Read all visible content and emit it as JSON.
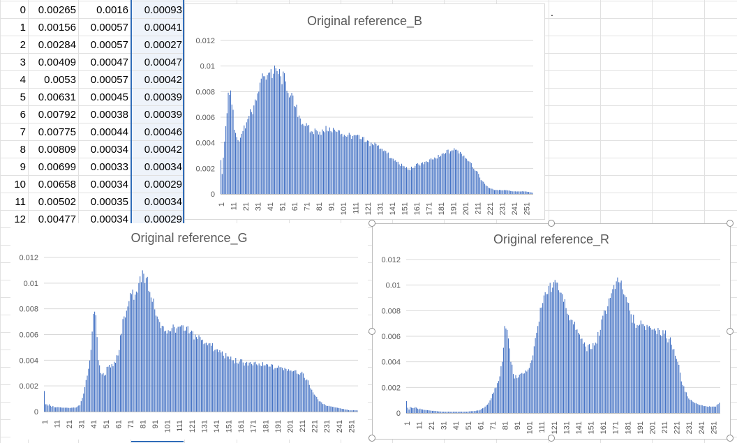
{
  "sheet": {
    "rows": [
      {
        "n": "0",
        "a": "0.00265",
        "b": "0.0016",
        "c": "0.00093"
      },
      {
        "n": "1",
        "a": "0.00156",
        "b": "0.00057",
        "c": "0.00041"
      },
      {
        "n": "2",
        "a": "0.00284",
        "b": "0.00057",
        "c": "0.00027"
      },
      {
        "n": "3",
        "a": "0.00409",
        "b": "0.00047",
        "c": "0.00047"
      },
      {
        "n": "4",
        "a": "0.0053",
        "b": "0.00057",
        "c": "0.00042"
      },
      {
        "n": "5",
        "a": "0.00631",
        "b": "0.00045",
        "c": "0.00039"
      },
      {
        "n": "6",
        "a": "0.00792",
        "b": "0.00038",
        "c": "0.00039"
      },
      {
        "n": "7",
        "a": "0.00775",
        "b": "0.00044",
        "c": "0.00046"
      },
      {
        "n": "8",
        "a": "0.00809",
        "b": "0.00034",
        "c": "0.00042"
      },
      {
        "n": "9",
        "a": "0.00699",
        "b": "0.00033",
        "c": "0.00034"
      },
      {
        "n": "10",
        "a": "0.00658",
        "b": "0.00034",
        "c": "0.00029"
      },
      {
        "n": "11",
        "a": "0.00502",
        "b": "0.00035",
        "c": "0.00034"
      },
      {
        "n": "12",
        "a": "0.00477",
        "b": "0.00034",
        "c": "0.00029"
      }
    ],
    "trailing_mark": "."
  },
  "colors": {
    "bar": "#4472c4",
    "grid": "#d9d9d9",
    "axis_text": "#595959",
    "title": "#595959",
    "selection": "#2f6cb8",
    "selected_fill": "#eef3fa",
    "cell_grid": "#e1e1e1"
  },
  "chart_data": [
    {
      "type": "bar",
      "title": "Original reference_B",
      "xlabel": "",
      "ylabel": "",
      "ylim": [
        0,
        0.012
      ],
      "yticks": [
        "0",
        "0.002",
        "0.004",
        "0.006",
        "0.008",
        "0.01",
        "0.012"
      ],
      "xticks": [
        "1",
        "11",
        "21",
        "31",
        "41",
        "51",
        "61",
        "71",
        "81",
        "91",
        "101",
        "111",
        "121",
        "131",
        "141",
        "151",
        "161",
        "171",
        "181",
        "191",
        "201",
        "211",
        "221",
        "231",
        "241",
        "251"
      ],
      "x_range": [
        1,
        256
      ],
      "grid": true,
      "profile": [
        [
          1,
          0.00265
        ],
        [
          2,
          0.00156
        ],
        [
          3,
          0.00284
        ],
        [
          4,
          0.00409
        ],
        [
          5,
          0.0053
        ],
        [
          6,
          0.00631
        ],
        [
          7,
          0.00792
        ],
        [
          8,
          0.00775
        ],
        [
          9,
          0.00809
        ],
        [
          10,
          0.00699
        ],
        [
          11,
          0.00658
        ],
        [
          12,
          0.00502
        ],
        [
          13,
          0.00477
        ],
        [
          15,
          0.0042
        ],
        [
          18,
          0.0047
        ],
        [
          22,
          0.0056
        ],
        [
          26,
          0.0064
        ],
        [
          30,
          0.0073
        ],
        [
          33,
          0.0087
        ],
        [
          37,
          0.0092
        ],
        [
          41,
          0.0095
        ],
        [
          44,
          0.0094
        ],
        [
          47,
          0.0096
        ],
        [
          50,
          0.0092
        ],
        [
          54,
          0.0088
        ],
        [
          58,
          0.0077
        ],
        [
          62,
          0.0068
        ],
        [
          66,
          0.0059
        ],
        [
          70,
          0.0053
        ],
        [
          75,
          0.0049
        ],
        [
          80,
          0.0049
        ],
        [
          85,
          0.0049
        ],
        [
          90,
          0.0052
        ],
        [
          95,
          0.0049
        ],
        [
          100,
          0.0047
        ],
        [
          105,
          0.0046
        ],
        [
          110,
          0.0046
        ],
        [
          115,
          0.0043
        ],
        [
          120,
          0.0041
        ],
        [
          125,
          0.0039
        ],
        [
          130,
          0.0038
        ],
        [
          135,
          0.0034
        ],
        [
          140,
          0.0028
        ],
        [
          145,
          0.0025
        ],
        [
          150,
          0.0022
        ],
        [
          155,
          0.0019
        ],
        [
          160,
          0.0022
        ],
        [
          165,
          0.0024
        ],
        [
          170,
          0.0025
        ],
        [
          175,
          0.0027
        ],
        [
          180,
          0.0029
        ],
        [
          185,
          0.0032
        ],
        [
          190,
          0.0034
        ],
        [
          195,
          0.0034
        ],
        [
          200,
          0.003
        ],
        [
          205,
          0.0025
        ],
        [
          210,
          0.0018
        ],
        [
          215,
          0.001
        ],
        [
          220,
          0.0005
        ],
        [
          225,
          0.0003
        ],
        [
          230,
          0.0003
        ],
        [
          235,
          0.0003
        ],
        [
          240,
          0.0002
        ],
        [
          245,
          0.0002
        ],
        [
          250,
          0.0002
        ],
        [
          256,
          0.0001
        ]
      ]
    },
    {
      "type": "bar",
      "title": "Original reference_G",
      "xlabel": "",
      "ylabel": "",
      "ylim": [
        0,
        0.012
      ],
      "yticks": [
        "0",
        "0.002",
        "0.004",
        "0.006",
        "0.008",
        "0.01",
        "0.012"
      ],
      "xticks": [
        "1",
        "11",
        "21",
        "31",
        "41",
        "51",
        "61",
        "71",
        "81",
        "91",
        "101",
        "111",
        "121",
        "131",
        "141",
        "151",
        "161",
        "171",
        "181",
        "191",
        "201",
        "211",
        "221",
        "231",
        "241",
        "251"
      ],
      "x_range": [
        1,
        256
      ],
      "grid": true,
      "profile": [
        [
          1,
          0.0016
        ],
        [
          2,
          0.00057
        ],
        [
          3,
          0.00057
        ],
        [
          4,
          0.00047
        ],
        [
          5,
          0.00057
        ],
        [
          6,
          0.00045
        ],
        [
          7,
          0.00038
        ],
        [
          8,
          0.00044
        ],
        [
          9,
          0.00034
        ],
        [
          10,
          0.00033
        ],
        [
          11,
          0.00034
        ],
        [
          12,
          0.00035
        ],
        [
          13,
          0.00034
        ],
        [
          20,
          0.0003
        ],
        [
          26,
          0.0003
        ],
        [
          30,
          0.0005
        ],
        [
          33,
          0.0014
        ],
        [
          36,
          0.0028
        ],
        [
          39,
          0.0048
        ],
        [
          41,
          0.0076
        ],
        [
          43,
          0.0075
        ],
        [
          45,
          0.004
        ],
        [
          47,
          0.003
        ],
        [
          50,
          0.0028
        ],
        [
          53,
          0.0035
        ],
        [
          56,
          0.0037
        ],
        [
          59,
          0.0038
        ],
        [
          62,
          0.0048
        ],
        [
          65,
          0.0072
        ],
        [
          70,
          0.0086
        ],
        [
          75,
          0.0091
        ],
        [
          78,
          0.01
        ],
        [
          81,
          0.011
        ],
        [
          84,
          0.0104
        ],
        [
          87,
          0.0093
        ],
        [
          90,
          0.0088
        ],
        [
          93,
          0.0074
        ],
        [
          96,
          0.0065
        ],
        [
          100,
          0.0063
        ],
        [
          105,
          0.0065
        ],
        [
          110,
          0.0066
        ],
        [
          115,
          0.0063
        ],
        [
          120,
          0.0062
        ],
        [
          125,
          0.0058
        ],
        [
          130,
          0.0056
        ],
        [
          135,
          0.0053
        ],
        [
          140,
          0.0048
        ],
        [
          145,
          0.0046
        ],
        [
          150,
          0.0043
        ],
        [
          155,
          0.004
        ],
        [
          160,
          0.0039
        ],
        [
          165,
          0.0038
        ],
        [
          170,
          0.0037
        ],
        [
          175,
          0.0036
        ],
        [
          180,
          0.0036
        ],
        [
          185,
          0.0035
        ],
        [
          190,
          0.0034
        ],
        [
          195,
          0.0034
        ],
        [
          200,
          0.0033
        ],
        [
          205,
          0.0032
        ],
        [
          210,
          0.003
        ],
        [
          215,
          0.0025
        ],
        [
          220,
          0.0015
        ],
        [
          225,
          0.0008
        ],
        [
          230,
          0.0005
        ],
        [
          235,
          0.0004
        ],
        [
          240,
          0.0003
        ],
        [
          245,
          0.0002
        ],
        [
          250,
          0.0001
        ],
        [
          256,
          0.0001
        ]
      ]
    },
    {
      "type": "bar",
      "title": "Original reference_R",
      "xlabel": "",
      "ylabel": "",
      "ylim": [
        0,
        0.012
      ],
      "yticks": [
        "0",
        "0.002",
        "0.004",
        "0.006",
        "0.008",
        "0.01",
        "0.012"
      ],
      "xticks": [
        "1",
        "11",
        "21",
        "31",
        "41",
        "51",
        "61",
        "71",
        "81",
        "91",
        "101",
        "111",
        "121",
        "131",
        "141",
        "151",
        "161",
        "171",
        "181",
        "191",
        "201",
        "211",
        "221",
        "231",
        "241",
        "251"
      ],
      "x_range": [
        1,
        256
      ],
      "grid": true,
      "profile": [
        [
          1,
          0.00093
        ],
        [
          2,
          0.00041
        ],
        [
          3,
          0.00027
        ],
        [
          4,
          0.00047
        ],
        [
          5,
          0.00042
        ],
        [
          6,
          0.00039
        ],
        [
          7,
          0.00039
        ],
        [
          8,
          0.00046
        ],
        [
          9,
          0.00042
        ],
        [
          10,
          0.00034
        ],
        [
          11,
          0.00029
        ],
        [
          12,
          0.00034
        ],
        [
          13,
          0.00029
        ],
        [
          20,
          0.0002
        ],
        [
          30,
          0.0001
        ],
        [
          40,
          0.0001
        ],
        [
          50,
          0.0001
        ],
        [
          60,
          0.0002
        ],
        [
          64,
          0.0004
        ],
        [
          68,
          0.0008
        ],
        [
          72,
          0.0016
        ],
        [
          76,
          0.0025
        ],
        [
          79,
          0.004
        ],
        [
          81,
          0.0068
        ],
        [
          83,
          0.0065
        ],
        [
          86,
          0.004
        ],
        [
          89,
          0.0027
        ],
        [
          93,
          0.003
        ],
        [
          97,
          0.0031
        ],
        [
          100,
          0.0034
        ],
        [
          104,
          0.0045
        ],
        [
          108,
          0.0068
        ],
        [
          112,
          0.0086
        ],
        [
          116,
          0.0093
        ],
        [
          120,
          0.0098
        ],
        [
          123,
          0.0102
        ],
        [
          127,
          0.0094
        ],
        [
          131,
          0.0082
        ],
        [
          135,
          0.0073
        ],
        [
          139,
          0.0065
        ],
        [
          143,
          0.0058
        ],
        [
          147,
          0.0052
        ],
        [
          151,
          0.005
        ],
        [
          155,
          0.0055
        ],
        [
          159,
          0.0065
        ],
        [
          163,
          0.008
        ],
        [
          167,
          0.009
        ],
        [
          171,
          0.0097
        ],
        [
          175,
          0.0102
        ],
        [
          179,
          0.0092
        ],
        [
          183,
          0.008
        ],
        [
          187,
          0.007
        ],
        [
          191,
          0.0069
        ],
        [
          195,
          0.0068
        ],
        [
          199,
          0.0068
        ],
        [
          203,
          0.0066
        ],
        [
          207,
          0.0065
        ],
        [
          211,
          0.0062
        ],
        [
          215,
          0.0058
        ],
        [
          219,
          0.005
        ],
        [
          222,
          0.004
        ],
        [
          226,
          0.0022
        ],
        [
          230,
          0.0013
        ],
        [
          234,
          0.0009
        ],
        [
          238,
          0.0007
        ],
        [
          242,
          0.0006
        ],
        [
          246,
          0.0005
        ],
        [
          250,
          0.0005
        ],
        [
          253,
          0.0005
        ],
        [
          256,
          0.0008
        ]
      ]
    }
  ]
}
